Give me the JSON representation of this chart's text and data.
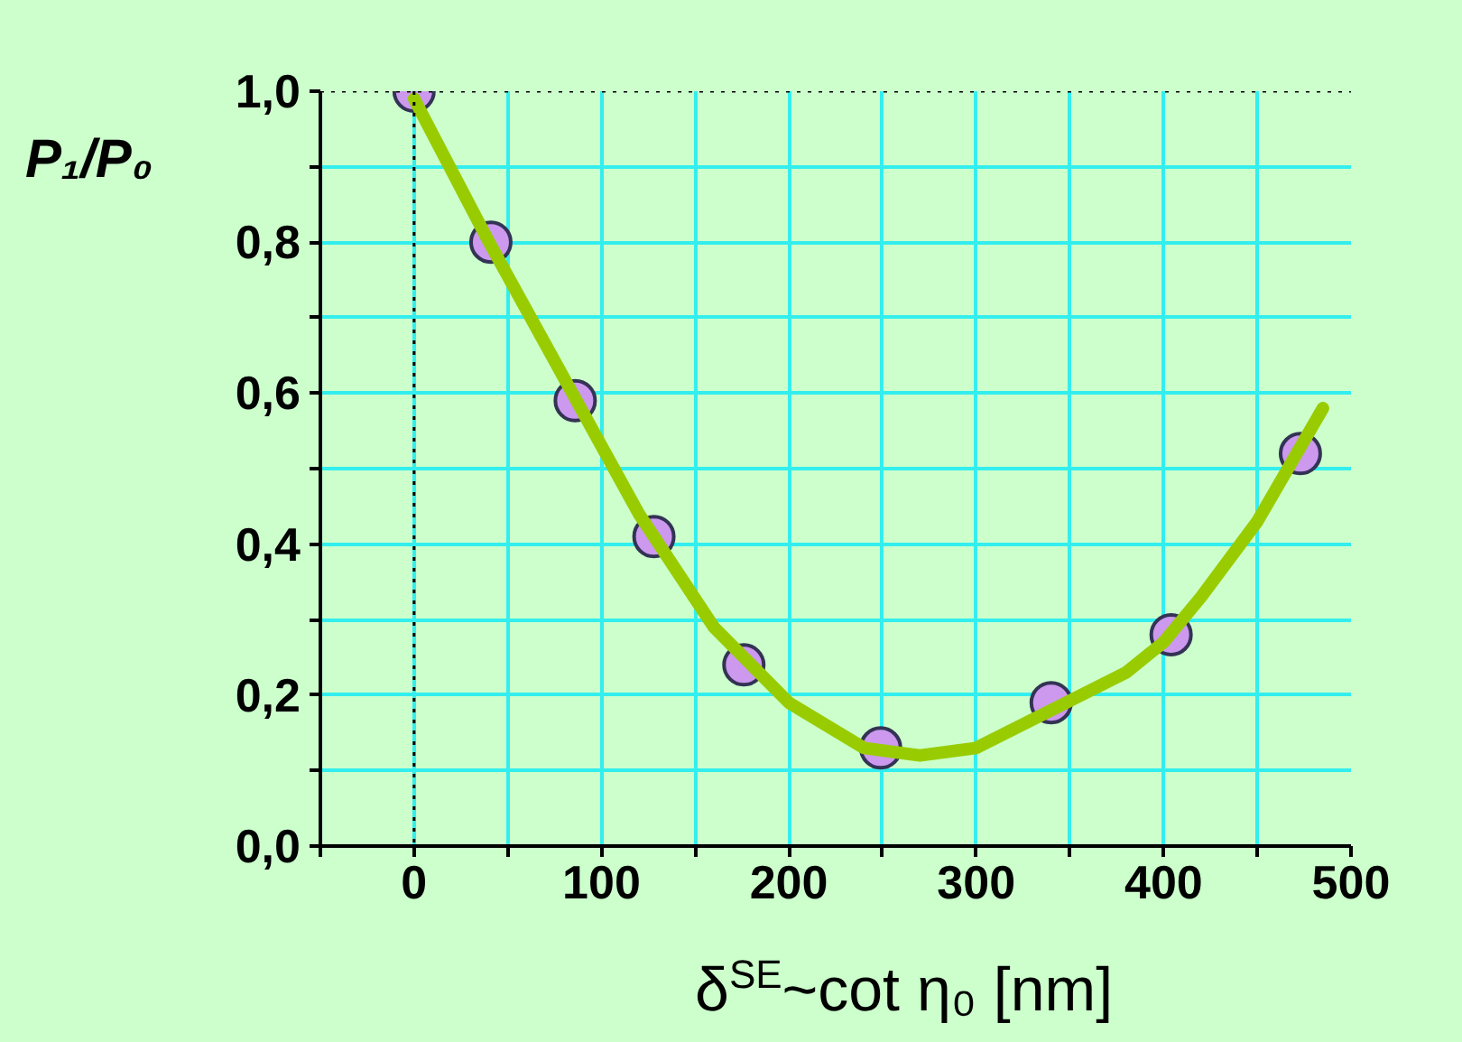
{
  "chart_data": {
    "type": "line",
    "ylabel": "P₁/P₀",
    "xlabel": "δ$^{SE}$~cot η₀ [nm]",
    "xlim": [
      -50,
      500
    ],
    "xticks": [
      {
        "value": -50,
        "label": null
      },
      0,
      {
        "value": 50,
        "label": null
      },
      100,
      {
        "value": 150,
        "label": null
      },
      200,
      {
        "value": 250,
        "label": null
      },
      300,
      {
        "value": 350,
        "label": null
      },
      400,
      {
        "value": 450,
        "label": null
      },
      500
    ],
    "ylim": [
      0,
      1.0
    ],
    "yticks": [
      {
        "value": 0,
        "label": "0,0"
      },
      {
        "value": 0.1,
        "label": null
      },
      {
        "value": 0.2,
        "label": "0,2"
      },
      {
        "value": 0.3,
        "label": null
      },
      {
        "value": 0.4,
        "label": "0,4"
      },
      {
        "value": 0.5,
        "label": null
      },
      {
        "value": 0.6,
        "label": "0,6"
      },
      {
        "value": 0.7,
        "label": null
      },
      {
        "value": 0.8,
        "label": "0,8"
      },
      {
        "value": 0.9,
        "label": null
      },
      {
        "value": 1.0,
        "label": "1,0"
      }
    ],
    "grid": true,
    "ref_lines": [
      {
        "axis": "x",
        "value": 0,
        "line_style": "dotted",
        "color": "#000000"
      },
      {
        "axis": "y",
        "value": 1.0,
        "line_style": "dotted",
        "color": "#000000"
      }
    ],
    "series": [
      {
        "color": "#99cc00",
        "line_style": "solid",
        "x": [
          0,
          40,
          80,
          120,
          160,
          200,
          240,
          270,
          300,
          340,
          380,
          400,
          420,
          450,
          485
        ],
        "values": [
          0.99,
          0.8,
          0.62,
          0.44,
          0.29,
          0.19,
          0.13,
          0.12,
          0.13,
          0.18,
          0.23,
          0.27,
          0.33,
          0.43,
          0.58
        ]
      },
      {
        "type": "scatter",
        "marker": "circle",
        "color": "#cc99ee",
        "x": [
          0,
          41,
          86,
          128,
          176,
          249,
          340,
          404,
          473
        ],
        "values": [
          1.0,
          0.8,
          0.59,
          0.41,
          0.24,
          0.13,
          0.19,
          0.28,
          0.52
        ]
      }
    ]
  }
}
